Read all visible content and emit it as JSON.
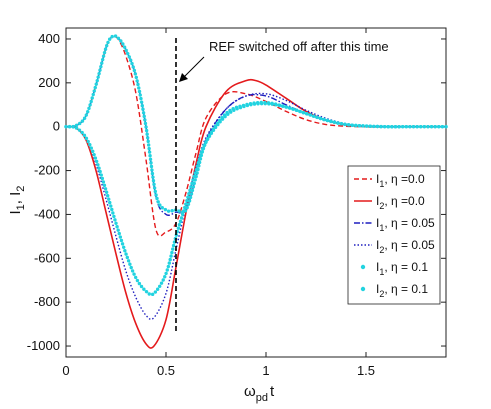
{
  "chart_data": {
    "type": "line",
    "title": "",
    "xlabel": "ω",
    "xlabel_sub": "pd",
    "xlabel_suffix": "t",
    "ylabel": "I",
    "ylabel_sub1": "1",
    "ylabel_sep": ", I",
    "ylabel_sub2": "2",
    "xlim": [
      0,
      1.9
    ],
    "ylim": [
      -1050,
      450
    ],
    "xticks": [
      0,
      0.5,
      1,
      1.5
    ],
    "xtick_labels": [
      "0",
      "0.5",
      "1",
      "1.5"
    ],
    "yticks": [
      400,
      200,
      0,
      -200,
      -400,
      -600,
      -800,
      -1000
    ],
    "ytick_labels": [
      "400",
      "200",
      "0",
      "-200",
      "-400",
      "-600",
      "-800",
      "-1000"
    ],
    "grid": false,
    "legend_position": "right",
    "annotation": {
      "text": "REF switched off after this time",
      "x": 0.55
    },
    "series": [
      {
        "name": "I1, η =0.0",
        "legend": {
          "base": "I",
          "sub": "1",
          "rest": ", η =0.0"
        },
        "color": "#e41a1c",
        "style": "dashed",
        "x": [
          0,
          0.05,
          0.1,
          0.15,
          0.2,
          0.23,
          0.26,
          0.3,
          0.35,
          0.4,
          0.45,
          0.5,
          0.55,
          0.6,
          0.65,
          0.7,
          0.8,
          0.9,
          1.0,
          1.1,
          1.2,
          1.3,
          1.4,
          1.5,
          1.6,
          1.7,
          1.9
        ],
        "y": [
          0,
          5,
          50,
          190,
          360,
          410,
          400,
          320,
          150,
          -150,
          -470,
          -480,
          -440,
          -300,
          -120,
          40,
          150,
          150,
          115,
          70,
          32,
          10,
          2,
          0,
          0,
          0,
          0
        ]
      },
      {
        "name": "I2, η =0.0",
        "legend": {
          "base": "I",
          "sub": "2",
          "rest": ", η =0.0"
        },
        "color": "#e41a1c",
        "style": "solid",
        "x": [
          0,
          0.05,
          0.1,
          0.15,
          0.2,
          0.25,
          0.3,
          0.35,
          0.4,
          0.44,
          0.5,
          0.55,
          0.6,
          0.65,
          0.7,
          0.8,
          0.9,
          0.95,
          1.0,
          1.1,
          1.2,
          1.3,
          1.4,
          1.5,
          1.6,
          1.7,
          1.9
        ],
        "y": [
          0,
          -5,
          -60,
          -200,
          -390,
          -580,
          -760,
          -900,
          -990,
          -1000,
          -880,
          -640,
          -390,
          -170,
          0,
          160,
          210,
          210,
          190,
          130,
          70,
          30,
          8,
          0,
          0,
          0,
          0
        ]
      },
      {
        "name": "I1, η = 0.05",
        "legend": {
          "base": "I",
          "sub": "1",
          "rest": ", η = 0.05"
        },
        "color": "#1f1fbf",
        "style": "dashdot",
        "x": [
          0,
          0.05,
          0.1,
          0.15,
          0.2,
          0.23,
          0.26,
          0.3,
          0.35,
          0.4,
          0.45,
          0.5,
          0.55,
          0.6,
          0.65,
          0.7,
          0.8,
          0.9,
          1.0,
          1.1,
          1.2,
          1.3,
          1.4,
          1.5,
          1.6,
          1.7,
          1.9
        ],
        "y": [
          0,
          5,
          50,
          190,
          360,
          410,
          405,
          350,
          230,
          0,
          -320,
          -400,
          -390,
          -380,
          -230,
          -60,
          80,
          140,
          140,
          100,
          60,
          30,
          10,
          3,
          0,
          0,
          0
        ]
      },
      {
        "name": "I2, η = 0.05",
        "legend": {
          "base": "I",
          "sub": "2",
          "rest": ", η = 0.05"
        },
        "color": "#1f1fbf",
        "style": "dotted",
        "x": [
          0,
          0.05,
          0.1,
          0.15,
          0.2,
          0.25,
          0.3,
          0.35,
          0.4,
          0.44,
          0.5,
          0.55,
          0.6,
          0.65,
          0.7,
          0.8,
          0.9,
          1.0,
          1.1,
          1.2,
          1.3,
          1.4,
          1.5,
          1.6,
          1.7,
          1.9
        ],
        "y": [
          0,
          -5,
          -50,
          -170,
          -330,
          -500,
          -660,
          -780,
          -860,
          -870,
          -760,
          -560,
          -360,
          -190,
          -50,
          80,
          140,
          150,
          120,
          75,
          38,
          14,
          4,
          0,
          0,
          0
        ]
      },
      {
        "name": "I1, η = 0.1",
        "legend": {
          "base": "I",
          "sub": "1",
          "rest": ", η = 0.1"
        },
        "color": "#22d3e0",
        "style": "markers",
        "x": [
          0,
          0.05,
          0.1,
          0.15,
          0.2,
          0.23,
          0.26,
          0.3,
          0.35,
          0.4,
          0.45,
          0.5,
          0.55,
          0.6,
          0.65,
          0.7,
          0.8,
          0.9,
          1.0,
          1.1,
          1.2,
          1.3,
          1.4,
          1.5,
          1.6,
          1.7,
          1.9
        ],
        "y": [
          0,
          5,
          50,
          190,
          360,
          410,
          405,
          350,
          230,
          0,
          -310,
          -380,
          -380,
          -380,
          -230,
          -70,
          60,
          100,
          110,
          90,
          60,
          30,
          10,
          3,
          0,
          0,
          0
        ]
      },
      {
        "name": "I2, η = 0.1",
        "legend": {
          "base": "I",
          "sub": "2",
          "rest": ", η = 0.1"
        },
        "color": "#22d3e0",
        "style": "markers",
        "x": [
          0,
          0.05,
          0.1,
          0.15,
          0.2,
          0.25,
          0.3,
          0.35,
          0.4,
          0.44,
          0.5,
          0.55,
          0.6,
          0.65,
          0.7,
          0.8,
          0.9,
          1.0,
          1.1,
          1.2,
          1.3,
          1.4,
          1.5,
          1.6,
          1.7,
          1.9
        ],
        "y": [
          0,
          -5,
          -50,
          -150,
          -290,
          -440,
          -580,
          -690,
          -750,
          -760,
          -670,
          -500,
          -350,
          -200,
          -70,
          50,
          95,
          105,
          90,
          60,
          30,
          10,
          3,
          0,
          0,
          0
        ]
      }
    ]
  }
}
